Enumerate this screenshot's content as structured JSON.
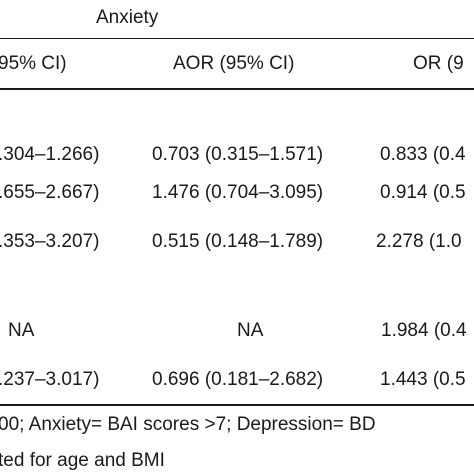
{
  "table": {
    "group_header": "Anxiety",
    "columns": [
      "95% CI)",
      "AOR (95% CI)",
      "OR (9"
    ],
    "rows": [
      {
        "c1": ".304–1.266)",
        "c2": "0.703 (0.315–1.571)",
        "c3": "0.833 (0.4"
      },
      {
        "c1": ".655–2.667)",
        "c2": "1.476 (0.704–3.095)",
        "c3": "0.914 (0.5"
      },
      {
        "c1": ".353–3.207)",
        "c2": "0.515 (0.148–1.789)",
        "c3": "2.278 (1.0"
      },
      {
        "c1": "NA",
        "c2": "NA",
        "c3": "1.984 (0.4"
      },
      {
        "c1": ".237–3.017)",
        "c2": "0.696 (0.181–2.682)",
        "c3": "1.443 (0.5"
      }
    ]
  },
  "footnotes": {
    "line1": "00; Anxiety=  BAI scores >7; Depression= BD",
    "line2": "ted for age and BMI"
  }
}
